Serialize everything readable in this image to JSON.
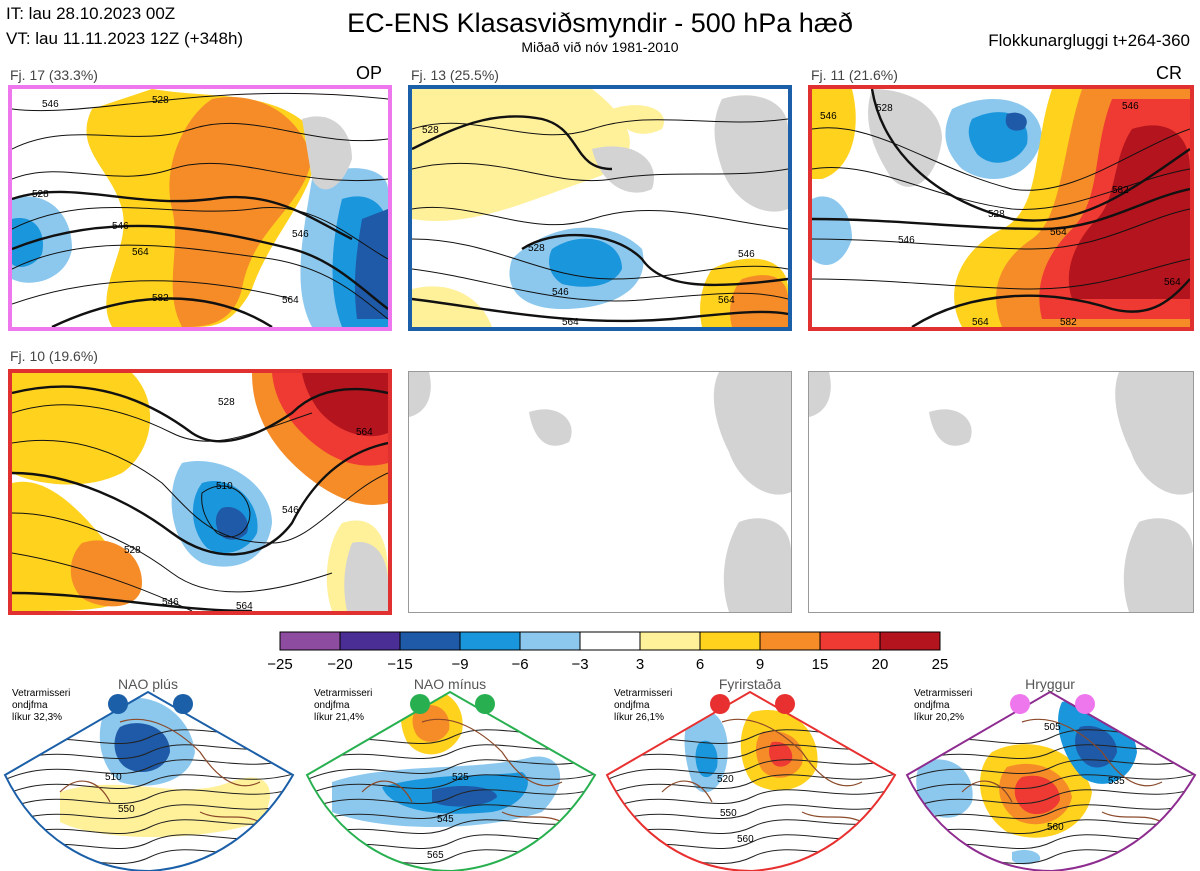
{
  "header": {
    "initial_time": "IT: lau 28.10.2023 00Z",
    "valid_time": "VT: lau 11.11.2023 12Z  (+348h)",
    "title": "EC-ENS Klasasviðsmyndir - 500 hPa hæð",
    "subtitle": "Miðað við nóv 1981-2010",
    "window": "Flokkunargluggi t+264-360"
  },
  "clusters": [
    {
      "label": "Fj. 17 (33.3%)",
      "tag": "OP",
      "border_color": "#ee77ee",
      "contour_labels": [
        "546",
        "528",
        "528",
        "546",
        "564",
        "546",
        "582",
        "564"
      ]
    },
    {
      "label": "Fj. 13 (25.5%)",
      "tag": "",
      "border_color": "#1a5fa8",
      "contour_labels": [
        "528",
        "528",
        "546",
        "546",
        "564",
        "564"
      ]
    },
    {
      "label": "Fj. 11 (21.6%)",
      "tag": "CR",
      "border_color": "#e03030",
      "contour_labels": [
        "546",
        "528",
        "528",
        "546",
        "546",
        "564",
        "582",
        "582",
        "564",
        "564"
      ]
    },
    {
      "label": "Fj. 10 (19.6%)",
      "tag": "",
      "border_color": "#e03030",
      "contour_labels": [
        "510",
        "546",
        "528",
        "546",
        "564",
        "564",
        "528"
      ]
    }
  ],
  "colorbar": {
    "ticks": [
      "−25",
      "−20",
      "−15",
      "−9",
      "−6",
      "−3",
      "3",
      "6",
      "9",
      "15",
      "20",
      "25"
    ],
    "colors": [
      "#8e4ca0",
      "#4a2e96",
      "#1e5aa8",
      "#1a96dc",
      "#8cc8ee",
      "#ffffff",
      "#fff09a",
      "#ffd21e",
      "#f58c28",
      "#ee3a32",
      "#b4141e"
    ]
  },
  "regimes": [
    {
      "title": "NAO plús",
      "note_lines": [
        "Vetrarmisseri",
        "ondjfma",
        "líkur 32,3%"
      ],
      "dot_color": "#1a5fa8",
      "border_color": "#1a5fa8",
      "contour_labels": [
        "510",
        "550"
      ]
    },
    {
      "title": "NAO mínus",
      "note_lines": [
        "Vetrarmisseri",
        "ondjfma",
        "líkur 21,4%"
      ],
      "dot_color": "#28b050",
      "border_color": "#28b050",
      "contour_labels": [
        "525",
        "545",
        "565"
      ]
    },
    {
      "title": "Fyrirstaða",
      "note_lines": [
        "Vetrarmisseri",
        "ondjfma",
        "líkur 26,1%"
      ],
      "dot_color": "#e83030",
      "border_color": "#e83030",
      "contour_labels": [
        "520",
        "550",
        "560"
      ]
    },
    {
      "title": "Hryggur",
      "note_lines": [
        "Vetrarmisseri",
        "ondjfma",
        "líkur 20,2%"
      ],
      "dot_color": "#ee77ee",
      "border_color": "#8e2c90",
      "contour_labels": [
        "505",
        "535",
        "560"
      ]
    }
  ]
}
